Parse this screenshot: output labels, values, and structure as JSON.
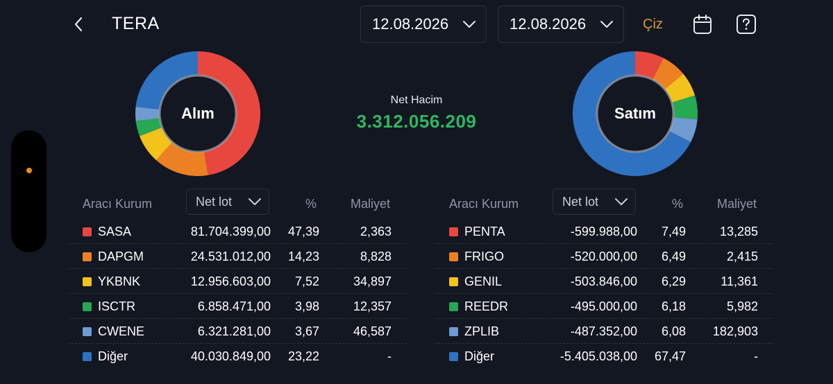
{
  "header": {
    "title": "TERA",
    "start_date": "12.08.2026",
    "end_date": "12.08.2026",
    "draw_label": "Çiz"
  },
  "colors": {
    "background": "#131722",
    "accent_draw": "#d39b2a",
    "net_positive": "#2fb760",
    "indicator_dot": "#f0891d"
  },
  "icons": [
    "back-chevron-icon",
    "chevron-down-icon",
    "calendar-icon",
    "help-icon"
  ],
  "summary": {
    "net_label": "Net Hacim",
    "net_value": "3.312.056.209"
  },
  "buy": {
    "donut_label": "Alım",
    "headers": {
      "broker": "Aracı Kurum",
      "sort": "Net lot",
      "pct": "%",
      "cost": "Maliyet"
    },
    "rows": [
      {
        "name": "SASA",
        "lot": "81.704.399,00",
        "pct": "47,39",
        "cost": "2,363",
        "color": "#e8473f",
        "share": 47.39
      },
      {
        "name": "DAPGM",
        "lot": "24.531.012,00",
        "pct": "14,23",
        "cost": "8,828",
        "color": "#ec8123",
        "share": 14.23
      },
      {
        "name": "YKBNK",
        "lot": "12.956.603,00",
        "pct": "7,52",
        "cost": "34,897",
        "color": "#f3c21b",
        "share": 7.52
      },
      {
        "name": "ISCTR",
        "lot": "6.858.471,00",
        "pct": "3,98",
        "cost": "12,357",
        "color": "#27a853",
        "share": 3.98
      },
      {
        "name": "CWENE",
        "lot": "6.321.281,00",
        "pct": "3,67",
        "cost": "46,587",
        "color": "#6f9bd1",
        "share": 3.67
      },
      {
        "name": "Diğer",
        "lot": "40.030.849,00",
        "pct": "23,22",
        "cost": "-",
        "color": "#2f72c2",
        "share": 23.22
      }
    ]
  },
  "sell": {
    "donut_label": "Satım",
    "headers": {
      "broker": "Aracı Kurum",
      "sort": "Net lot",
      "pct": "%",
      "cost": "Maliyet"
    },
    "rows": [
      {
        "name": "PENTA",
        "lot": "-599.988,00",
        "pct": "7,49",
        "cost": "13,285",
        "color": "#e8473f",
        "share": 7.49
      },
      {
        "name": "FRIGO",
        "lot": "-520.000,00",
        "pct": "6,49",
        "cost": "2,415",
        "color": "#ec8123",
        "share": 6.49
      },
      {
        "name": "GENIL",
        "lot": "-503.846,00",
        "pct": "6,29",
        "cost": "11,361",
        "color": "#f3c21b",
        "share": 6.29
      },
      {
        "name": "REEDR",
        "lot": "-495.000,00",
        "pct": "6,18",
        "cost": "5,982",
        "color": "#27a853",
        "share": 6.18
      },
      {
        "name": "ZPLIB",
        "lot": "-487.352,00",
        "pct": "6,08",
        "cost": "182,903",
        "color": "#6f9bd1",
        "share": 6.08
      },
      {
        "name": "Diğer",
        "lot": "-5.405.038,00",
        "pct": "67,47",
        "cost": "-",
        "color": "#2f72c2",
        "share": 67.47
      }
    ]
  }
}
